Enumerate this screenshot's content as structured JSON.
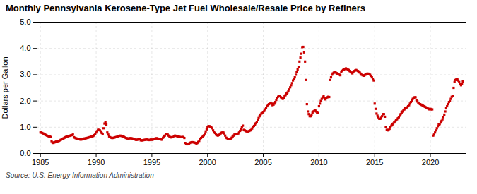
{
  "chart_data": {
    "type": "scatter",
    "title": "Monthly Pennsylvania Kerosene-Type Jet Fuel Wholesale/Resale Price by Refiners",
    "ylabel": "Dollars per Gallon",
    "source": "Source: U.S. Energy Information Administration",
    "color": "#cc0000",
    "marker": "square",
    "grid": true,
    "xlim": [
      1984.7,
      2023.2
    ],
    "xticks": [
      1985,
      1990,
      1995,
      2000,
      2005,
      2010,
      2015,
      2020
    ],
    "ylim": [
      0.0,
      5.0
    ],
    "yticks": [
      {
        "value": 0.0,
        "label": "0.0"
      },
      {
        "value": 1.0,
        "label": "1.0"
      },
      {
        "value": 2.0,
        "label": "2.0"
      },
      {
        "value": 3.0,
        "label": "3.0"
      },
      {
        "value": 4.0,
        "label": "4.0"
      },
      {
        "value": 5.0,
        "label": "5.0"
      }
    ],
    "x": [
      1985.0,
      1985.083,
      1985.167,
      1985.25,
      1985.333,
      1985.417,
      1985.5,
      1985.583,
      1985.667,
      1985.75,
      1985.833,
      1985.917,
      1986.0,
      1986.083,
      1986.167,
      1986.25,
      1986.333,
      1986.417,
      1986.5,
      1986.583,
      1986.667,
      1986.75,
      1986.833,
      1986.917,
      1987.0,
      1987.083,
      1987.167,
      1987.25,
      1987.333,
      1987.417,
      1987.5,
      1987.583,
      1987.667,
      1987.75,
      1987.833,
      1987.917,
      1988.0,
      1988.083,
      1988.167,
      1988.25,
      1988.333,
      1988.417,
      1988.5,
      1988.583,
      1988.667,
      1988.75,
      1988.833,
      1988.917,
      1989.0,
      1989.083,
      1989.167,
      1989.25,
      1989.333,
      1989.417,
      1989.5,
      1989.583,
      1989.667,
      1989.75,
      1989.833,
      1989.917,
      1990.0,
      1990.083,
      1990.167,
      1990.25,
      1990.333,
      1990.417,
      1990.5,
      1990.583,
      1990.667,
      1990.75,
      1990.833,
      1990.917,
      1991.0,
      1991.083,
      1991.167,
      1991.25,
      1991.333,
      1991.417,
      1991.5,
      1991.583,
      1991.667,
      1991.75,
      1991.833,
      1991.917,
      1992.0,
      1992.083,
      1992.167,
      1992.25,
      1992.333,
      1992.417,
      1992.5,
      1992.583,
      1992.667,
      1992.75,
      1992.833,
      1992.917,
      1993.0,
      1993.083,
      1993.167,
      1993.25,
      1993.333,
      1993.417,
      1993.5,
      1993.583,
      1993.667,
      1993.75,
      1993.833,
      1993.917,
      1994.0,
      1994.083,
      1994.167,
      1994.25,
      1994.333,
      1994.417,
      1994.5,
      1994.583,
      1994.667,
      1994.75,
      1994.833,
      1994.917,
      1995.0,
      1995.083,
      1995.167,
      1995.25,
      1995.333,
      1995.417,
      1995.5,
      1995.583,
      1995.667,
      1995.75,
      1995.833,
      1995.917,
      1996.0,
      1996.083,
      1996.167,
      1996.25,
      1996.333,
      1996.417,
      1996.5,
      1996.583,
      1996.667,
      1996.75,
      1996.833,
      1996.917,
      1997.0,
      1997.083,
      1997.167,
      1997.25,
      1997.333,
      1997.417,
      1997.5,
      1997.583,
      1997.667,
      1997.75,
      1997.833,
      1997.917,
      1998.0,
      1998.083,
      1998.167,
      1998.25,
      1998.333,
      1998.417,
      1998.5,
      1998.583,
      1998.667,
      1998.75,
      1998.833,
      1998.917,
      1999.0,
      1999.083,
      1999.167,
      1999.25,
      1999.333,
      1999.417,
      1999.5,
      1999.583,
      1999.667,
      1999.75,
      1999.833,
      1999.917,
      2000.0,
      2000.083,
      2000.167,
      2000.25,
      2000.333,
      2000.417,
      2000.5,
      2000.583,
      2000.667,
      2000.75,
      2000.833,
      2000.917,
      2001.0,
      2001.083,
      2001.167,
      2001.25,
      2001.333,
      2001.417,
      2001.5,
      2001.583,
      2001.667,
      2001.75,
      2001.833,
      2001.917,
      2002.0,
      2002.083,
      2002.167,
      2002.25,
      2002.333,
      2002.417,
      2002.5,
      2002.583,
      2002.667,
      2002.75,
      2002.833,
      2002.917,
      2003.0,
      2003.083,
      2003.167,
      2003.25,
      2003.333,
      2003.417,
      2003.5,
      2003.583,
      2003.667,
      2003.75,
      2003.833,
      2003.917,
      2004.0,
      2004.083,
      2004.167,
      2004.25,
      2004.333,
      2004.417,
      2004.5,
      2004.583,
      2004.667,
      2004.75,
      2004.833,
      2004.917,
      2005.0,
      2005.083,
      2005.167,
      2005.25,
      2005.333,
      2005.417,
      2005.5,
      2005.583,
      2005.667,
      2005.75,
      2005.833,
      2005.917,
      2006.0,
      2006.083,
      2006.167,
      2006.25,
      2006.333,
      2006.417,
      2006.5,
      2006.583,
      2006.667,
      2006.75,
      2006.833,
      2006.917,
      2007.0,
      2007.083,
      2007.167,
      2007.25,
      2007.333,
      2007.417,
      2007.5,
      2007.583,
      2007.667,
      2007.75,
      2007.833,
      2007.917,
      2008.0,
      2008.083,
      2008.167,
      2008.25,
      2008.333,
      2008.417,
      2008.5,
      2008.583,
      2008.667,
      2008.75,
      2008.833,
      2008.917,
      2009.0,
      2009.083,
      2009.167,
      2009.25,
      2009.333,
      2009.417,
      2009.5,
      2009.583,
      2009.667,
      2009.75,
      2009.833,
      2009.917,
      2010.0,
      2010.083,
      2010.167,
      2010.25,
      2010.333,
      2010.417,
      2010.5,
      2010.583,
      2010.667,
      2010.75,
      2010.833,
      2010.917,
      2011.0,
      2011.083,
      2011.167,
      2011.25,
      2011.333,
      2011.417,
      2011.5,
      2011.583,
      2011.667,
      2011.75,
      2011.833,
      2011.917,
      2012.0,
      2012.083,
      2012.167,
      2012.25,
      2012.333,
      2012.417,
      2012.5,
      2012.583,
      2012.667,
      2012.75,
      2012.833,
      2012.917,
      2013.0,
      2013.083,
      2013.167,
      2013.25,
      2013.333,
      2013.417,
      2013.5,
      2013.583,
      2013.667,
      2013.75,
      2013.833,
      2013.917,
      2014.0,
      2014.083,
      2014.167,
      2014.25,
      2014.333,
      2014.417,
      2014.5,
      2014.583,
      2014.667,
      2014.75,
      2014.833,
      2014.917,
      2015.0,
      2015.083,
      2015.167,
      2015.25,
      2015.333,
      2015.417,
      2015.5,
      2015.583,
      2015.667,
      2015.75,
      2015.833,
      2015.917,
      2016.0,
      2016.083,
      2016.167,
      2016.25,
      2016.333,
      2016.417,
      2016.5,
      2016.583,
      2016.667,
      2016.75,
      2016.833,
      2016.917,
      2017.0,
      2017.083,
      2017.167,
      2017.25,
      2017.333,
      2017.417,
      2017.5,
      2017.583,
      2017.667,
      2017.75,
      2017.833,
      2017.917,
      2018.0,
      2018.083,
      2018.167,
      2018.25,
      2018.333,
      2018.417,
      2018.5,
      2018.583,
      2018.667,
      2018.75,
      2018.833,
      2018.917,
      2019.0,
      2019.083,
      2019.167,
      2019.25,
      2019.333,
      2019.417,
      2019.5,
      2019.583,
      2019.667,
      2019.75,
      2019.833,
      2019.917,
      2020.0,
      2020.083,
      2020.167,
      2020.25,
      2020.333,
      2020.417,
      2020.5,
      2020.583,
      2020.667,
      2020.75,
      2020.833,
      2020.917,
      2021.0,
      2021.083,
      2021.167,
      2021.25,
      2021.333,
      2021.417,
      2021.5,
      2021.583,
      2021.667,
      2021.75,
      2021.833,
      2021.917,
      2022.0,
      2022.083,
      2022.167,
      2022.25,
      2022.333,
      2022.417,
      2022.5,
      2022.583,
      2022.667,
      2022.75,
      2022.833,
      2022.917
    ],
    "values": [
      0.8,
      0.8,
      0.78,
      0.76,
      0.74,
      0.72,
      0.7,
      0.68,
      0.67,
      0.65,
      0.64,
      0.63,
      0.47,
      0.42,
      0.4,
      0.42,
      0.44,
      0.45,
      0.46,
      0.47,
      0.48,
      0.5,
      0.52,
      0.54,
      0.55,
      0.58,
      0.6,
      0.62,
      0.64,
      0.65,
      0.66,
      0.67,
      0.68,
      0.69,
      0.7,
      0.72,
      0.62,
      0.6,
      0.58,
      0.57,
      0.56,
      0.55,
      0.54,
      0.53,
      0.53,
      0.54,
      0.55,
      0.57,
      0.57,
      0.58,
      0.59,
      0.6,
      0.61,
      0.62,
      0.63,
      0.64,
      0.65,
      0.67,
      0.7,
      0.75,
      0.8,
      0.85,
      0.9,
      0.9,
      0.88,
      0.84,
      0.78,
      0.75,
      0.96,
      1.14,
      1.18,
      1.1,
      0.8,
      0.72,
      0.65,
      0.62,
      0.6,
      0.59,
      0.59,
      0.6,
      0.61,
      0.62,
      0.63,
      0.64,
      0.66,
      0.67,
      0.68,
      0.67,
      0.66,
      0.65,
      0.63,
      0.61,
      0.59,
      0.58,
      0.57,
      0.57,
      0.58,
      0.58,
      0.58,
      0.57,
      0.56,
      0.54,
      0.53,
      0.52,
      0.52,
      0.53,
      0.54,
      0.55,
      0.5,
      0.5,
      0.5,
      0.51,
      0.52,
      0.52,
      0.53,
      0.53,
      0.52,
      0.51,
      0.52,
      0.53,
      0.52,
      0.53,
      0.55,
      0.56,
      0.57,
      0.58,
      0.57,
      0.56,
      0.55,
      0.54,
      0.53,
      0.53,
      0.6,
      0.65,
      0.68,
      0.74,
      0.75,
      0.72,
      0.68,
      0.64,
      0.62,
      0.61,
      0.62,
      0.63,
      0.67,
      0.68,
      0.67,
      0.66,
      0.65,
      0.64,
      0.63,
      0.62,
      0.62,
      0.63,
      0.62,
      0.59,
      0.4,
      0.37,
      0.35,
      0.36,
      0.38,
      0.4,
      0.42,
      0.43,
      0.43,
      0.42,
      0.41,
      0.4,
      0.38,
      0.4,
      0.44,
      0.48,
      0.54,
      0.59,
      0.62,
      0.65,
      0.69,
      0.76,
      0.84,
      0.92,
      1.0,
      1.04,
      1.04,
      1.02,
      1.0,
      0.96,
      0.88,
      0.82,
      0.78,
      0.72,
      0.7,
      0.68,
      0.7,
      0.72,
      0.76,
      0.79,
      0.8,
      0.8,
      0.76,
      0.68,
      0.6,
      0.58,
      0.56,
      0.55,
      0.56,
      0.57,
      0.6,
      0.64,
      0.68,
      0.72,
      0.74,
      0.74,
      0.73,
      0.76,
      0.8,
      0.86,
      0.92,
      1.0,
      1.06,
      0.9,
      0.88,
      0.86,
      0.84,
      0.84,
      0.84,
      0.86,
      0.88,
      0.9,
      0.95,
      1.0,
      1.05,
      1.1,
      1.15,
      1.2,
      1.28,
      1.35,
      1.42,
      1.48,
      1.52,
      1.54,
      1.58,
      1.62,
      1.68,
      1.74,
      1.8,
      1.84,
      1.88,
      1.9,
      1.92,
      1.9,
      1.84,
      1.86,
      1.9,
      1.96,
      2.04,
      2.1,
      2.16,
      2.2,
      2.18,
      2.14,
      2.1,
      2.08,
      2.12,
      2.18,
      2.22,
      2.28,
      2.32,
      2.38,
      2.44,
      2.52,
      2.6,
      2.68,
      2.78,
      2.84,
      2.9,
      3.0,
      3.1,
      3.2,
      3.3,
      3.5,
      3.65,
      3.8,
      4.05,
      4.06,
      3.85,
      3.5,
      2.8,
      1.88,
      1.6,
      1.5,
      1.42,
      1.42,
      1.48,
      1.55,
      1.6,
      1.62,
      1.64,
      1.6,
      1.56,
      1.54,
      1.8,
      1.9,
      2.0,
      2.08,
      2.14,
      2.18,
      2.12,
      2.06,
      2.1,
      2.14,
      2.16,
      2.15,
      2.8,
      2.9,
      3.0,
      3.05,
      3.08,
      3.1,
      3.08,
      3.06,
      3.04,
      3.02,
      3.0,
      2.98,
      3.12,
      3.15,
      3.18,
      3.2,
      3.22,
      3.24,
      3.22,
      3.2,
      3.18,
      3.14,
      3.1,
      3.08,
      3.05,
      3.1,
      3.14,
      3.16,
      3.18,
      3.16,
      3.14,
      3.12,
      3.08,
      3.04,
      3.0,
      2.98,
      2.96,
      2.98,
      3.0,
      3.02,
      3.04,
      3.04,
      3.02,
      3.0,
      2.96,
      2.9,
      2.82,
      2.78,
      1.9,
      1.7,
      1.52,
      1.44,
      1.38,
      1.32,
      1.32,
      1.36,
      1.42,
      1.5,
      1.5,
      1.4,
      1.0,
      0.9,
      0.88,
      0.9,
      0.94,
      1.0,
      1.06,
      1.1,
      1.14,
      1.18,
      1.22,
      1.26,
      1.3,
      1.34,
      1.38,
      1.44,
      1.5,
      1.56,
      1.6,
      1.64,
      1.68,
      1.72,
      1.74,
      1.76,
      1.8,
      1.84,
      1.9,
      1.96,
      2.02,
      2.08,
      2.12,
      2.14,
      2.14,
      2.04,
      1.98,
      1.92,
      1.9,
      1.88,
      1.86,
      1.84,
      1.82,
      1.8,
      1.78,
      1.76,
      1.74,
      1.72,
      1.7,
      1.68,
      1.7,
      1.68,
      1.68,
      0.68,
      0.72,
      0.8,
      0.88,
      0.96,
      1.04,
      1.1,
      1.12,
      1.18,
      1.24,
      1.3,
      1.38,
      1.48,
      1.6,
      1.72,
      1.8,
      1.88,
      1.96,
      2.0,
      2.08,
      2.16,
      2.2,
      2.5,
      2.72,
      2.8,
      2.84,
      2.82,
      2.78,
      2.72,
      2.65,
      2.6,
      2.65,
      2.74
    ]
  }
}
